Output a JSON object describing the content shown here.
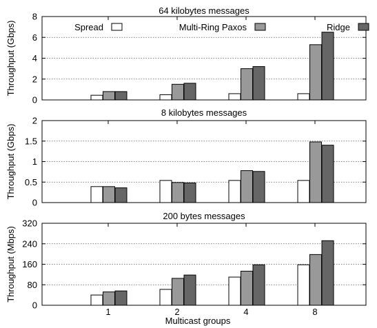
{
  "figure": {
    "xlabel": "Multicast groups"
  },
  "legend": {
    "items": [
      {
        "label": "Spread",
        "color": "#ffffff"
      },
      {
        "label": "Multi-Ring Paxos",
        "color": "#999999"
      },
      {
        "label": "Ridge",
        "color": "#666666"
      }
    ]
  },
  "chart_data": [
    {
      "type": "bar",
      "title": "64 kilobytes messages",
      "ylabel": "Throughput (Gbps)",
      "xlabel": "",
      "categories": [
        "1",
        "2",
        "4",
        "8"
      ],
      "ylim": [
        0,
        8
      ],
      "yticks": [
        0,
        2,
        4,
        6,
        8
      ],
      "ytick_labels": [
        "0",
        "2",
        "4",
        "6",
        "8"
      ],
      "grid": "horizontal dotted",
      "legend": "top, inside",
      "series": [
        {
          "name": "Spread",
          "values": [
            0.45,
            0.5,
            0.6,
            0.6
          ]
        },
        {
          "name": "Multi-Ring Paxos",
          "values": [
            0.8,
            1.5,
            3.0,
            5.3
          ]
        },
        {
          "name": "Ridge",
          "values": [
            0.8,
            1.6,
            3.2,
            6.5
          ]
        }
      ]
    },
    {
      "type": "bar",
      "title": "8 kilobytes messages",
      "ylabel": "Throughput (Gbps)",
      "xlabel": "",
      "categories": [
        "1",
        "2",
        "4",
        "8"
      ],
      "ylim": [
        0,
        2
      ],
      "yticks": [
        0,
        0.5,
        1,
        1.5,
        2
      ],
      "ytick_labels": [
        "0",
        "0.5",
        "1",
        "1.5",
        "2"
      ],
      "grid": "horizontal dotted",
      "series": [
        {
          "name": "Spread",
          "values": [
            0.39,
            0.54,
            0.54,
            0.54
          ]
        },
        {
          "name": "Multi-Ring Paxos",
          "values": [
            0.39,
            0.49,
            0.78,
            1.48
          ]
        },
        {
          "name": "Ridge",
          "values": [
            0.36,
            0.48,
            0.76,
            1.4
          ]
        }
      ]
    },
    {
      "type": "bar",
      "title": "200 bytes messages",
      "ylabel": "Throughput (Mbps)",
      "xlabel": "Multicast groups",
      "categories": [
        "1",
        "2",
        "4",
        "8"
      ],
      "ylim": [
        0,
        320
      ],
      "yticks": [
        0,
        80,
        160,
        240,
        320
      ],
      "ytick_labels": [
        "0",
        "80",
        "160",
        "240",
        "320"
      ],
      "grid": "horizontal dotted",
      "series": [
        {
          "name": "Spread",
          "values": [
            40,
            62,
            110,
            158
          ]
        },
        {
          "name": "Multi-Ring Paxos",
          "values": [
            52,
            105,
            133,
            198
          ]
        },
        {
          "name": "Ridge",
          "values": [
            56,
            118,
            158,
            252
          ]
        }
      ]
    }
  ]
}
